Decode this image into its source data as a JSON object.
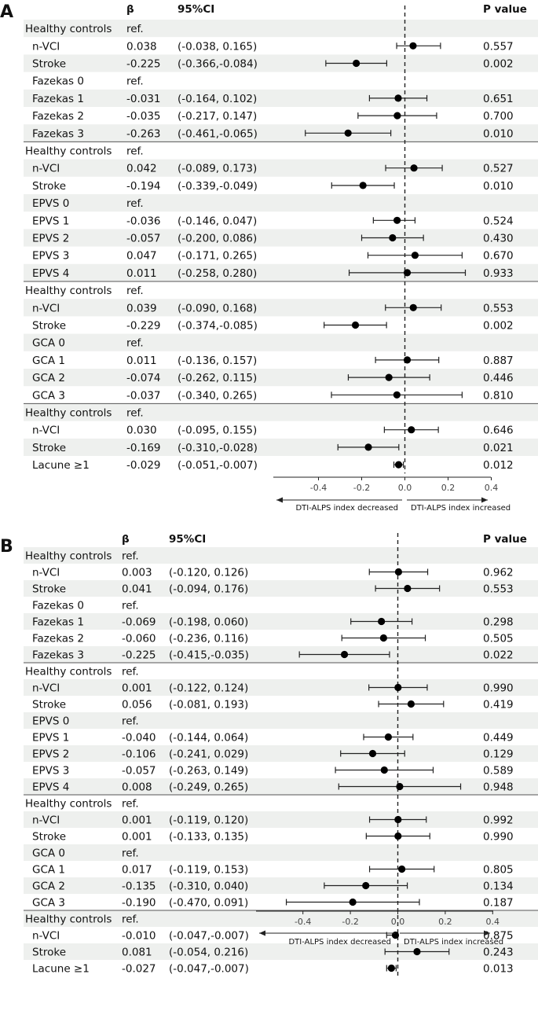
{
  "panels": [
    {
      "letter": "A",
      "headers": {
        "beta": "β",
        "ci": "95%CI",
        "p": "P value"
      },
      "rows": [
        {
          "label": "Healthy controls",
          "beta": "ref.",
          "ci": "",
          "p": "",
          "est": null,
          "lo": null,
          "hi": null
        },
        {
          "label": "n-VCI",
          "beta": "0.038",
          "ci": "(-0.038, 0.165)",
          "p": "0.557",
          "est": 0.038,
          "lo": -0.038,
          "hi": 0.165
        },
        {
          "label": "Stroke",
          "beta": "-0.225",
          "ci": "(-0.366,-0.084)",
          "p": "0.002",
          "est": -0.225,
          "lo": -0.366,
          "hi": -0.084
        },
        {
          "label": "Fazekas 0",
          "beta": "ref.",
          "ci": "",
          "p": "",
          "est": null,
          "lo": null,
          "hi": null
        },
        {
          "label": "Fazekas 1",
          "beta": "-0.031",
          "ci": "(-0.164, 0.102)",
          "p": "0.651",
          "est": -0.031,
          "lo": -0.164,
          "hi": 0.102
        },
        {
          "label": "Fazekas 2",
          "beta": "-0.035",
          "ci": "(-0.217, 0.147)",
          "p": "0.700",
          "est": -0.035,
          "lo": -0.217,
          "hi": 0.147
        },
        {
          "label": "Fazekas 3",
          "beta": "-0.263",
          "ci": "(-0.461,-0.065)",
          "p": "0.010",
          "est": -0.263,
          "lo": -0.461,
          "hi": -0.065
        },
        {
          "label": "Healthy controls",
          "beta": "ref.",
          "ci": "",
          "p": "",
          "est": null,
          "lo": null,
          "hi": null
        },
        {
          "label": "n-VCI",
          "beta": "0.042",
          "ci": "(-0.089, 0.173)",
          "p": "0.527",
          "est": 0.042,
          "lo": -0.089,
          "hi": 0.173
        },
        {
          "label": "Stroke",
          "beta": "-0.194",
          "ci": "(-0.339,-0.049)",
          "p": "0.010",
          "est": -0.194,
          "lo": -0.339,
          "hi": -0.049
        },
        {
          "label": "EPVS 0",
          "beta": "ref.",
          "ci": "",
          "p": "",
          "est": null,
          "lo": null,
          "hi": null
        },
        {
          "label": "EPVS 1",
          "beta": "-0.036",
          "ci": "(-0.146, 0.047)",
          "p": "0.524",
          "est": -0.036,
          "lo": -0.146,
          "hi": 0.047
        },
        {
          "label": "EPVS 2",
          "beta": "-0.057",
          "ci": "(-0.200, 0.086)",
          "p": "0.430",
          "est": -0.057,
          "lo": -0.2,
          "hi": 0.086
        },
        {
          "label": "EPVS 3",
          "beta": "0.047",
          "ci": "(-0.171, 0.265)",
          "p": "0.670",
          "est": 0.047,
          "lo": -0.171,
          "hi": 0.265
        },
        {
          "label": "EPVS 4",
          "beta": "0.011",
          "ci": "(-0.258, 0.280)",
          "p": "0.933",
          "est": 0.011,
          "lo": -0.258,
          "hi": 0.28
        },
        {
          "label": "Healthy controls",
          "beta": "ref.",
          "ci": "",
          "p": "",
          "est": null,
          "lo": null,
          "hi": null
        },
        {
          "label": "n-VCI",
          "beta": "0.039",
          "ci": "(-0.090, 0.168)",
          "p": "0.553",
          "est": 0.039,
          "lo": -0.09,
          "hi": 0.168
        },
        {
          "label": "Stroke",
          "beta": "-0.229",
          "ci": "(-0.374,-0.085)",
          "p": "0.002",
          "est": -0.229,
          "lo": -0.374,
          "hi": -0.085
        },
        {
          "label": "GCA 0",
          "beta": "ref.",
          "ci": "",
          "p": "",
          "est": null,
          "lo": null,
          "hi": null
        },
        {
          "label": "GCA 1",
          "beta": "0.011",
          "ci": "(-0.136, 0.157)",
          "p": "0.887",
          "est": 0.011,
          "lo": -0.136,
          "hi": 0.157
        },
        {
          "label": "GCA 2",
          "beta": "-0.074",
          "ci": "(-0.262, 0.115)",
          "p": "0.446",
          "est": -0.074,
          "lo": -0.262,
          "hi": 0.115
        },
        {
          "label": "GCA 3",
          "beta": "-0.037",
          "ci": "(-0.340, 0.265)",
          "p": "0.810",
          "est": -0.037,
          "lo": -0.34,
          "hi": 0.265
        },
        {
          "label": "Healthy controls",
          "beta": "ref.",
          "ci": "",
          "p": "",
          "est": null,
          "lo": null,
          "hi": null
        },
        {
          "label": "n-VCI",
          "beta": "0.030",
          "ci": "(-0.095, 0.155)",
          "p": "0.646",
          "est": 0.03,
          "lo": -0.095,
          "hi": 0.155
        },
        {
          "label": "Stroke",
          "beta": "-0.169",
          "ci": "(-0.310,-0.028)",
          "p": "0.021",
          "est": -0.169,
          "lo": -0.31,
          "hi": -0.028
        },
        {
          "label": "Lacune ≥1",
          "beta": "-0.029",
          "ci": "(-0.051,-0.007)",
          "p": "0.012",
          "est": -0.029,
          "lo": -0.051,
          "hi": -0.007
        }
      ],
      "axis": {
        "ticks": [
          -0.4,
          -0.2,
          0.0,
          0.2,
          0.4
        ],
        "tick_labels": [
          "-0.4",
          "-0.2",
          "0.0",
          "0.2",
          "0.4"
        ],
        "range": [
          -0.56,
          0.4
        ]
      },
      "arrows": {
        "left": "DTI-ALPS index decreased",
        "right": "DTI-ALPS index increased"
      }
    },
    {
      "letter": "B",
      "headers": {
        "beta": "β",
        "ci": "95%CI",
        "p": "P value"
      },
      "rows": [
        {
          "label": "Healthy controls",
          "beta": "ref.",
          "ci": "",
          "p": "",
          "est": null,
          "lo": null,
          "hi": null
        },
        {
          "label": "n-VCI",
          "beta": "0.003",
          "ci": "(-0.120, 0.126)",
          "p": "0.962",
          "est": 0.003,
          "lo": -0.12,
          "hi": 0.126
        },
        {
          "label": "Stroke",
          "beta": "0.041",
          "ci": "(-0.094, 0.176)",
          "p": "0.553",
          "est": 0.041,
          "lo": -0.094,
          "hi": 0.176
        },
        {
          "label": "Fazekas 0",
          "beta": "ref.",
          "ci": "",
          "p": "",
          "est": null,
          "lo": null,
          "hi": null
        },
        {
          "label": "Fazekas 1",
          "beta": "-0.069",
          "ci": "(-0.198, 0.060)",
          "p": "0.298",
          "est": -0.069,
          "lo": -0.198,
          "hi": 0.06
        },
        {
          "label": "Fazekas 2",
          "beta": "-0.060",
          "ci": "(-0.236, 0.116)",
          "p": "0.505",
          "est": -0.06,
          "lo": -0.236,
          "hi": 0.116
        },
        {
          "label": "Fazekas 3",
          "beta": "-0.225",
          "ci": "(-0.415,-0.035)",
          "p": "0.022",
          "est": -0.225,
          "lo": -0.415,
          "hi": -0.035
        },
        {
          "label": "Healthy controls",
          "beta": "ref.",
          "ci": "",
          "p": "",
          "est": null,
          "lo": null,
          "hi": null
        },
        {
          "label": "n-VCI",
          "beta": "0.001",
          "ci": "(-0.122, 0.124)",
          "p": "0.990",
          "est": 0.001,
          "lo": -0.122,
          "hi": 0.124
        },
        {
          "label": "Stroke",
          "beta": "0.056",
          "ci": "(-0.081, 0.193)",
          "p": "0.419",
          "est": 0.056,
          "lo": -0.081,
          "hi": 0.193
        },
        {
          "label": "EPVS 0",
          "beta": "ref.",
          "ci": "",
          "p": "",
          "est": null,
          "lo": null,
          "hi": null
        },
        {
          "label": "EPVS 1",
          "beta": "-0.040",
          "ci": "(-0.144, 0.064)",
          "p": "0.449",
          "est": -0.04,
          "lo": -0.144,
          "hi": 0.064
        },
        {
          "label": "EPVS 2",
          "beta": "-0.106",
          "ci": "(-0.241, 0.029)",
          "p": "0.129",
          "est": -0.106,
          "lo": -0.241,
          "hi": 0.029
        },
        {
          "label": "EPVS 3",
          "beta": "-0.057",
          "ci": "(-0.263, 0.149)",
          "p": "0.589",
          "est": -0.057,
          "lo": -0.263,
          "hi": 0.149
        },
        {
          "label": "EPVS 4",
          "beta": "0.008",
          "ci": "(-0.249, 0.265)",
          "p": "0.948",
          "est": 0.008,
          "lo": -0.249,
          "hi": 0.265
        },
        {
          "label": "Healthy controls",
          "beta": "ref.",
          "ci": "",
          "p": "",
          "est": null,
          "lo": null,
          "hi": null
        },
        {
          "label": "n-VCI",
          "beta": "0.001",
          "ci": "(-0.119, 0.120)",
          "p": "0.992",
          "est": 0.001,
          "lo": -0.119,
          "hi": 0.12
        },
        {
          "label": "Stroke",
          "beta": "0.001",
          "ci": "(-0.133, 0.135)",
          "p": "0.990",
          "est": 0.001,
          "lo": -0.133,
          "hi": 0.135
        },
        {
          "label": "GCA 0",
          "beta": "ref.",
          "ci": "",
          "p": "",
          "est": null,
          "lo": null,
          "hi": null
        },
        {
          "label": "GCA 1",
          "beta": "0.017",
          "ci": "(-0.119, 0.153)",
          "p": "0.805",
          "est": 0.017,
          "lo": -0.119,
          "hi": 0.153
        },
        {
          "label": "GCA 2",
          "beta": "-0.135",
          "ci": "(-0.310, 0.040)",
          "p": "0.134",
          "est": -0.135,
          "lo": -0.31,
          "hi": 0.04
        },
        {
          "label": "GCA 3",
          "beta": "-0.190",
          "ci": "(-0.470, 0.091)",
          "p": "0.187",
          "est": -0.19,
          "lo": -0.47,
          "hi": 0.091
        },
        {
          "label": "Healthy controls",
          "beta": "ref.",
          "ci": "",
          "p": "",
          "est": null,
          "lo": null,
          "hi": null
        },
        {
          "label": "n-VCI",
          "beta": "-0.010",
          "ci": "(-0.047,-0.007)",
          "p": "0.875",
          "est": -0.01,
          "lo": -0.047,
          "hi": -0.007
        },
        {
          "label": "Stroke",
          "beta": "0.081",
          "ci": "(-0.054, 0.216)",
          "p": "0.243",
          "est": 0.081,
          "lo": -0.054,
          "hi": 0.216
        },
        {
          "label": "Lacune ≥1",
          "beta": "-0.027",
          "ci": "(-0.047,-0.007)",
          "p": "0.013",
          "est": -0.027,
          "lo": -0.047,
          "hi": -0.007
        }
      ],
      "axis": {
        "ticks": [
          -0.4,
          -0.2,
          0.0,
          0.2,
          0.4
        ],
        "tick_labels": [
          "-0.4",
          "-0.2",
          "0.0",
          "0.2",
          "0.4"
        ],
        "range": [
          -0.6,
          0.4
        ]
      },
      "arrows": {
        "left": "DTI-ALPS index decreased",
        "right": "DTI-ALPS index increased"
      }
    }
  ],
  "chart_data": [
    {
      "type": "scatter",
      "subtype": "forest-plot",
      "panel": "A",
      "x_range": [
        -0.56,
        0.4
      ],
      "reference_line": 0.0,
      "x_ticks": [
        -0.4,
        -0.2,
        0.0,
        0.2,
        0.4
      ],
      "series": [
        {
          "points": "panels.0.rows"
        }
      ]
    },
    {
      "type": "scatter",
      "subtype": "forest-plot",
      "panel": "B",
      "x_range": [
        -0.6,
        0.4
      ],
      "reference_line": 0.0,
      "x_ticks": [
        -0.4,
        -0.2,
        0.0,
        0.2,
        0.4
      ],
      "series": [
        {
          "points": "panels.1.rows"
        }
      ]
    }
  ],
  "colors": {
    "stripe": "#eef0ee",
    "text": "#111111",
    "line": "#222222",
    "divider": "#555555"
  }
}
